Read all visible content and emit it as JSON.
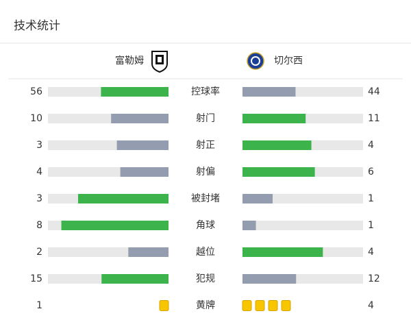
{
  "header": {
    "title": "技术统计"
  },
  "teams": {
    "home": "富勒姆",
    "away": "切尔西"
  },
  "colors": {
    "leader": "#3cb44b",
    "other": "#939daf",
    "track": "#e8e8e8",
    "card": "#f7c600"
  },
  "rows": [
    {
      "type": "bar",
      "label": "控球率",
      "home": 56,
      "away": 44
    },
    {
      "type": "bar",
      "label": "射门",
      "home": 10,
      "away": 11
    },
    {
      "type": "bar",
      "label": "射正",
      "home": 3,
      "away": 4
    },
    {
      "type": "bar",
      "label": "射偏",
      "home": 4,
      "away": 6
    },
    {
      "type": "bar",
      "label": "被封堵",
      "home": 3,
      "away": 1
    },
    {
      "type": "bar",
      "label": "角球",
      "home": 8,
      "away": 1
    },
    {
      "type": "bar",
      "label": "越位",
      "home": 2,
      "away": 4
    },
    {
      "type": "bar",
      "label": "犯规",
      "home": 15,
      "away": 12
    },
    {
      "type": "cards",
      "label": "黄牌",
      "home": 1,
      "away": 4
    }
  ]
}
